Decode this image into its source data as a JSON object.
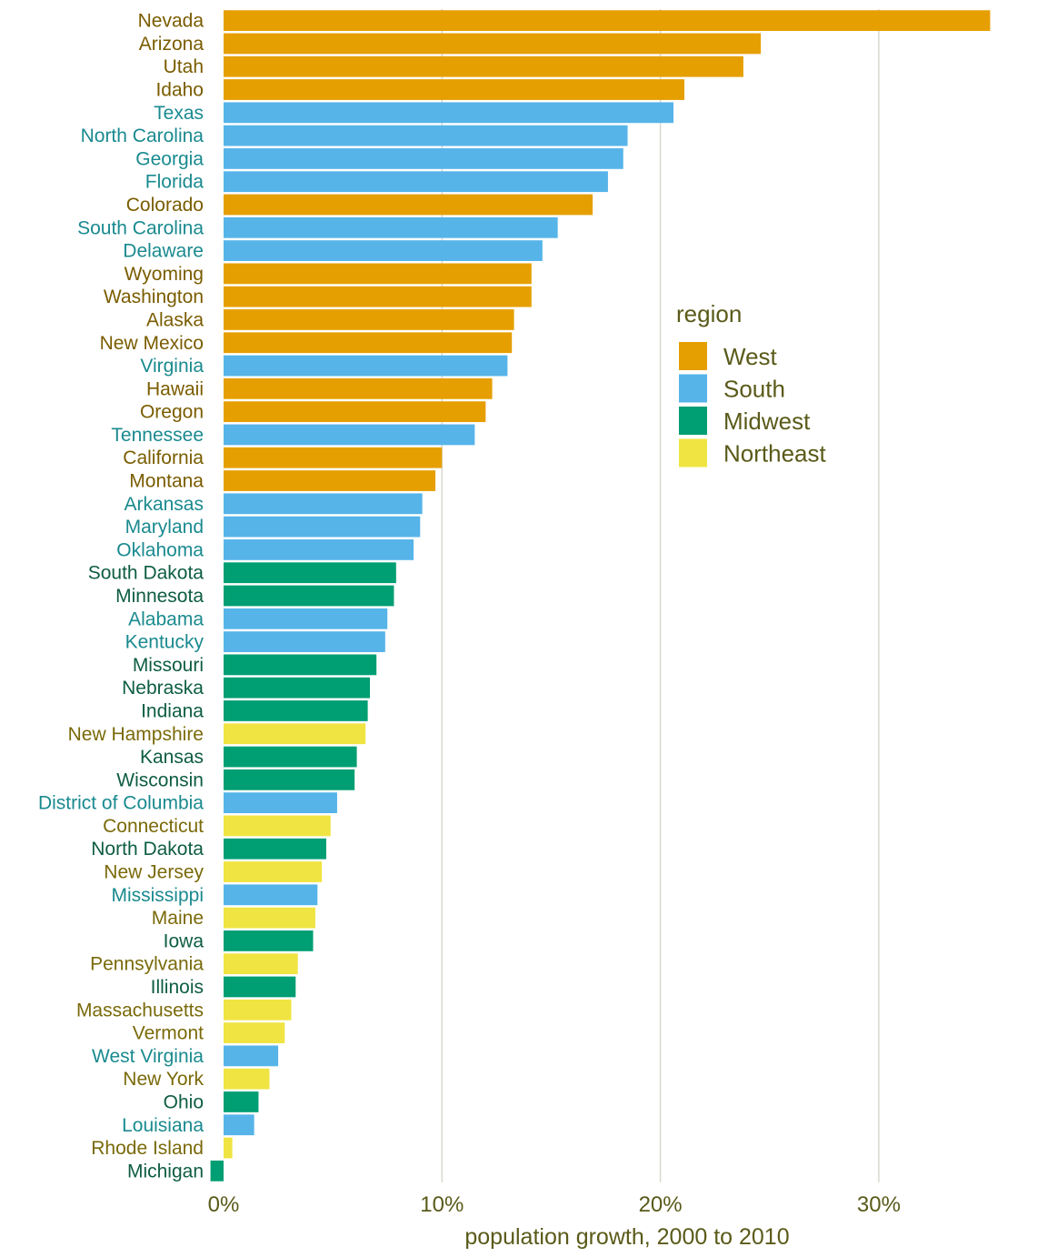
{
  "chart_data": {
    "type": "bar",
    "orientation": "horizontal",
    "xlabel": "population growth, 2000 to 2010",
    "ylabel": "",
    "title": "",
    "xlim": [
      -0.6,
      36
    ],
    "xticks": [
      0,
      10,
      20,
      30
    ],
    "xtick_labels": [
      "0%",
      "10%",
      "20%",
      "30%"
    ],
    "grid": "vertical",
    "legend_position": "right",
    "legend": {
      "title": "region",
      "entries": [
        {
          "name": "West",
          "color": "#E69F00"
        },
        {
          "name": "South",
          "color": "#56B4E9"
        },
        {
          "name": "Midwest",
          "color": "#009E73"
        },
        {
          "name": "Northeast",
          "color": "#F0E442"
        }
      ]
    },
    "label_colors": {
      "West": "#7a5c00",
      "South": "#1a8a8f",
      "Midwest": "#0e5d43",
      "Northeast": "#7a6a0a"
    },
    "text_color": "#5a5a1a",
    "grid_color": "#d8d8d0",
    "bars": [
      {
        "state": "Nevada",
        "region": "West",
        "value": 35.1
      },
      {
        "state": "Arizona",
        "region": "West",
        "value": 24.6
      },
      {
        "state": "Utah",
        "region": "West",
        "value": 23.8
      },
      {
        "state": "Idaho",
        "region": "West",
        "value": 21.1
      },
      {
        "state": "Texas",
        "region": "South",
        "value": 20.6
      },
      {
        "state": "North Carolina",
        "region": "South",
        "value": 18.5
      },
      {
        "state": "Georgia",
        "region": "South",
        "value": 18.3
      },
      {
        "state": "Florida",
        "region": "South",
        "value": 17.6
      },
      {
        "state": "Colorado",
        "region": "West",
        "value": 16.9
      },
      {
        "state": "South Carolina",
        "region": "South",
        "value": 15.3
      },
      {
        "state": "Delaware",
        "region": "South",
        "value": 14.6
      },
      {
        "state": "Wyoming",
        "region": "West",
        "value": 14.1
      },
      {
        "state": "Washington",
        "region": "West",
        "value": 14.1
      },
      {
        "state": "Alaska",
        "region": "West",
        "value": 13.3
      },
      {
        "state": "New Mexico",
        "region": "West",
        "value": 13.2
      },
      {
        "state": "Virginia",
        "region": "South",
        "value": 13.0
      },
      {
        "state": "Hawaii",
        "region": "West",
        "value": 12.3
      },
      {
        "state": "Oregon",
        "region": "West",
        "value": 12.0
      },
      {
        "state": "Tennessee",
        "region": "South",
        "value": 11.5
      },
      {
        "state": "California",
        "region": "West",
        "value": 10.0
      },
      {
        "state": "Montana",
        "region": "West",
        "value": 9.7
      },
      {
        "state": "Arkansas",
        "region": "South",
        "value": 9.1
      },
      {
        "state": "Maryland",
        "region": "South",
        "value": 9.0
      },
      {
        "state": "Oklahoma",
        "region": "South",
        "value": 8.7
      },
      {
        "state": "South Dakota",
        "region": "Midwest",
        "value": 7.9
      },
      {
        "state": "Minnesota",
        "region": "Midwest",
        "value": 7.8
      },
      {
        "state": "Alabama",
        "region": "South",
        "value": 7.5
      },
      {
        "state": "Kentucky",
        "region": "South",
        "value": 7.4
      },
      {
        "state": "Missouri",
        "region": "Midwest",
        "value": 7.0
      },
      {
        "state": "Nebraska",
        "region": "Midwest",
        "value": 6.7
      },
      {
        "state": "Indiana",
        "region": "Midwest",
        "value": 6.6
      },
      {
        "state": "New Hampshire",
        "region": "Northeast",
        "value": 6.5
      },
      {
        "state": "Kansas",
        "region": "Midwest",
        "value": 6.1
      },
      {
        "state": "Wisconsin",
        "region": "Midwest",
        "value": 6.0
      },
      {
        "state": "District of Columbia",
        "region": "South",
        "value": 5.2
      },
      {
        "state": "Connecticut",
        "region": "Northeast",
        "value": 4.9
      },
      {
        "state": "North Dakota",
        "region": "Midwest",
        "value": 4.7
      },
      {
        "state": "New Jersey",
        "region": "Northeast",
        "value": 4.5
      },
      {
        "state": "Mississippi",
        "region": "South",
        "value": 4.3
      },
      {
        "state": "Maine",
        "region": "Northeast",
        "value": 4.2
      },
      {
        "state": "Iowa",
        "region": "Midwest",
        "value": 4.1
      },
      {
        "state": "Pennsylvania",
        "region": "Northeast",
        "value": 3.4
      },
      {
        "state": "Illinois",
        "region": "Midwest",
        "value": 3.3
      },
      {
        "state": "Massachusetts",
        "region": "Northeast",
        "value": 3.1
      },
      {
        "state": "Vermont",
        "region": "Northeast",
        "value": 2.8
      },
      {
        "state": "West Virginia",
        "region": "South",
        "value": 2.5
      },
      {
        "state": "New York",
        "region": "Northeast",
        "value": 2.1
      },
      {
        "state": "Ohio",
        "region": "Midwest",
        "value": 1.6
      },
      {
        "state": "Louisiana",
        "region": "South",
        "value": 1.4
      },
      {
        "state": "Rhode Island",
        "region": "Northeast",
        "value": 0.4
      },
      {
        "state": "Michigan",
        "region": "Midwest",
        "value": -0.6
      }
    ]
  }
}
